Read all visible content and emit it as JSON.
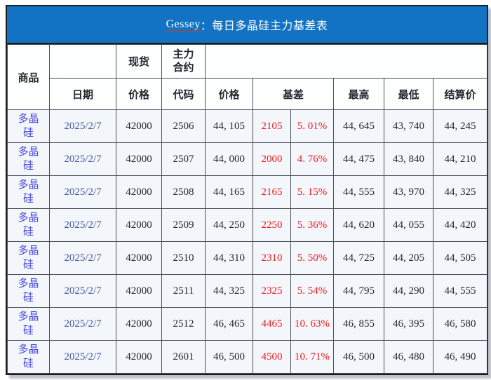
{
  "title": {
    "brand": "Gessey",
    "rest": "：每日多晶硅主力基差表"
  },
  "colors": {
    "title_bar_bg": "#1273C4",
    "header_tint": "#E7EBF6",
    "row_bg": "#F3F6FB",
    "commodity_blue": "#4545DC",
    "date_blue": "#46589E",
    "basis_red": "#ED1C1C"
  },
  "table": {
    "header": {
      "commodity": "商品",
      "spot": "现货",
      "main_contract": "主力合约",
      "date": "日期",
      "price_spot": "价格",
      "code": "代码",
      "price_main": "价格",
      "basis": "基差",
      "high": "最高",
      "low": "最低",
      "settle": "结算价"
    },
    "rows": [
      {
        "commodity": "多晶硅",
        "date": "2025/2/7",
        "spot_price": "42000",
        "code": "2506",
        "price": "44, 105",
        "basis": "2105",
        "basis_pct": "5. 01%",
        "high": "44, 645",
        "low": "43, 740",
        "settle": "44, 245"
      },
      {
        "commodity": "多晶硅",
        "date": "2025/2/7",
        "spot_price": "42000",
        "code": "2507",
        "price": "44, 000",
        "basis": "2000",
        "basis_pct": "4. 76%",
        "high": "44, 475",
        "low": "43, 840",
        "settle": "44, 210"
      },
      {
        "commodity": "多晶硅",
        "date": "2025/2/7",
        "spot_price": "42000",
        "code": "2508",
        "price": "44, 165",
        "basis": "2165",
        "basis_pct": "5. 15%",
        "high": "44, 555",
        "low": "43, 970",
        "settle": "44, 325"
      },
      {
        "commodity": "多晶硅",
        "date": "2025/2/7",
        "spot_price": "42000",
        "code": "2509",
        "price": "44, 250",
        "basis": "2250",
        "basis_pct": "5. 36%",
        "high": "44, 620",
        "low": "44, 055",
        "settle": "44, 420"
      },
      {
        "commodity": "多晶硅",
        "date": "2025/2/7",
        "spot_price": "42000",
        "code": "2510",
        "price": "44, 310",
        "basis": "2310",
        "basis_pct": "5. 50%",
        "high": "44, 725",
        "low": "44, 205",
        "settle": "44, 505"
      },
      {
        "commodity": "多晶硅",
        "date": "2025/2/7",
        "spot_price": "42000",
        "code": "2511",
        "price": "44, 325",
        "basis": "2325",
        "basis_pct": "5. 54%",
        "high": "44, 795",
        "low": "44, 290",
        "settle": "44, 555"
      },
      {
        "commodity": "多晶硅",
        "date": "2025/2/7",
        "spot_price": "42000",
        "code": "2512",
        "price": "46, 465",
        "basis": "4465",
        "basis_pct": "10. 63%",
        "high": "46, 855",
        "low": "46, 395",
        "settle": "46, 580"
      },
      {
        "commodity": "多晶硅",
        "date": "2025/2/7",
        "spot_price": "42000",
        "code": "2601",
        "price": "46, 500",
        "basis": "4500",
        "basis_pct": "10. 71%",
        "high": "46, 500",
        "low": "46, 480",
        "settle": "46, 490"
      }
    ]
  }
}
